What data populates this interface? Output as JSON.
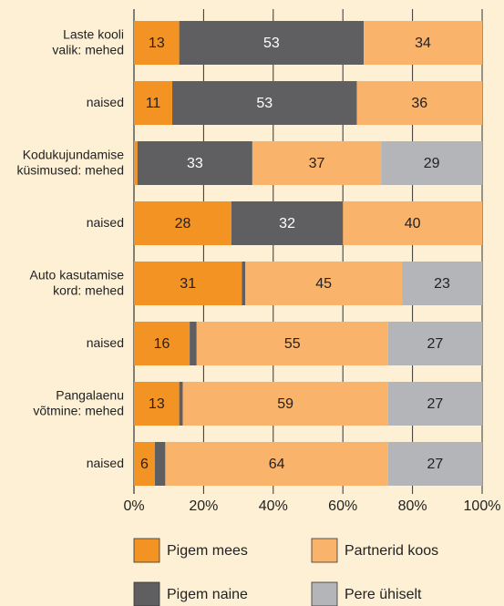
{
  "chart_data": {
    "type": "stacked_barh",
    "categories": [
      "Laste kooli\nvalik: mehed",
      "naised",
      "Kodukujundamise\nküsimused: mehed",
      "naised",
      "Auto kasutamise\nkord: mehed",
      "naised",
      "Pangalaenu\nvõtmine: mehed",
      "naised"
    ],
    "series": [
      {
        "name": "Pigem mees",
        "color": "#f39324",
        "values": [
          13,
          11,
          1,
          28,
          31,
          16,
          13,
          6
        ]
      },
      {
        "name": "Pigem naine",
        "color": "#5f5f61",
        "values": [
          53,
          53,
          33,
          32,
          1,
          2,
          1,
          3
        ]
      },
      {
        "name": "Partnerid koos",
        "color": "#f9b36a",
        "values": [
          34,
          36,
          37,
          40,
          45,
          55,
          59,
          64
        ]
      },
      {
        "name": "Pere ühiselt",
        "color": "#b4b5b9",
        "values": [
          null,
          null,
          29,
          null,
          23,
          27,
          27,
          27
        ]
      }
    ],
    "xlim": [
      0,
      100
    ],
    "xticks": [
      {
        "value": 0,
        "label": "0%"
      },
      {
        "value": 20,
        "label": "20%"
      },
      {
        "value": 40,
        "label": "40%"
      },
      {
        "value": 60,
        "label": "60%"
      },
      {
        "value": 80,
        "label": "80%"
      },
      {
        "value": 100,
        "label": "100%"
      }
    ],
    "grid": true
  }
}
